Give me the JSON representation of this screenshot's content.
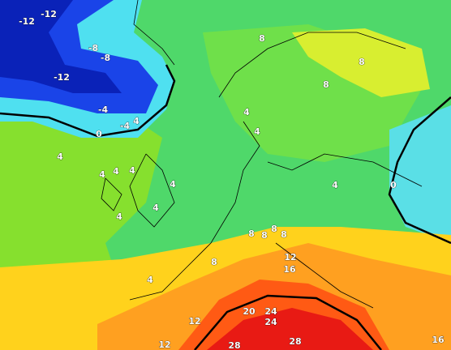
{
  "contour_labels": [
    -12,
    -12,
    -8,
    -8,
    -12,
    -4,
    -4,
    4,
    0,
    8,
    8,
    8,
    4,
    4,
    4,
    4,
    4,
    4,
    4,
    4,
    4,
    4,
    0,
    8,
    8,
    8,
    8,
    8,
    4,
    12,
    16,
    20,
    24,
    24,
    12,
    12,
    28,
    28,
    16
  ]
}
